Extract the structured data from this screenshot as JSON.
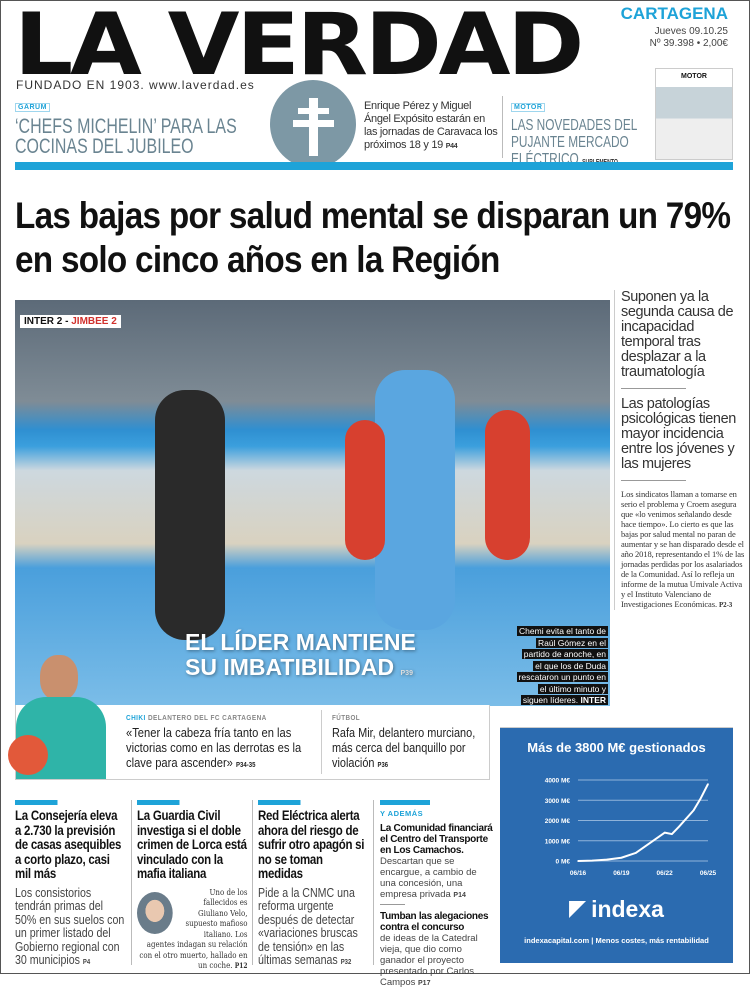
{
  "masthead": {
    "title": "LA VERDAD",
    "founded": "FUNDADO EN 1903. www.laverdad.es",
    "edition": "CARTAGENA",
    "date": "Jueves 09.10.25",
    "issue": "Nº 39.398 • 2,00€"
  },
  "teasers": {
    "garum": {
      "tag": "GARUM",
      "title": "‘CHEFS MICHELIN’ PARA LAS COCINAS DEL JUBILEO"
    },
    "caravaca": {
      "text": "Enrique Pérez y Miguel Ángel Expósito estarán en las jornadas de Caravaca los próximos 18 y 19",
      "page": "P44"
    },
    "motor": {
      "tag": "MOTOR",
      "title": "LAS NOVEDADES DEL PUJANTE MERCADO ELÉCTRICO",
      "suffix": "SUPLEMENTO",
      "thumb_title": "MOTOR"
    }
  },
  "lead": {
    "headline": "Las bajas por salud mental se disparan un 79% en solo cinco años en la Región",
    "decks": [
      "Suponen ya la segunda causa de incapacidad temporal tras desplazar a la traumatología",
      "Las patologías psicológicas tienen mayor incidencia entre los jóvenes y las mujeres"
    ],
    "body": "Los sindicatos llaman a tomarse en serio el problema y Croem asegura que «lo venimos señalando desde hace tiempo». Lo cierto es que las bajas por salud mental no paran de aumentar y se han disparado desde el año 2018, representando el 1% de las jornadas perdidas por los asalariados de la Comunidad. Así lo refleja un informe de la mutua Umivale Activa y el Instituto Valenciano de Investigaciones Económicas.",
    "page": "P2-3"
  },
  "photo": {
    "score_a": "INTER 2 -",
    "score_b": "JIMBEE 2",
    "title1": "EL LÍDER MANTIENE",
    "title2": "SU IMBATIBILIDAD",
    "page": "P39",
    "caption": "Chemi evita el tanto de Raúl Gómez en el partido de anoche, en el que los de Duda rescataron un punto en el último minuto y siguen líderes.",
    "credit": "INTER FS"
  },
  "chiki": {
    "name": "CHIKI",
    "role": "DELANTERO DEL FC CARTAGENA",
    "quote": "«Tener la cabeza fría tanto en las victorias como en las derrotas es la clave para ascender»",
    "page": "P34-35"
  },
  "futbol": {
    "tag": "FÚTBOL",
    "text": "Rafa Mir, delantero murciano, más cerca del banquillo por violación",
    "page": "P36"
  },
  "bottom": [
    {
      "title": "La Consejería eleva a 2.730 la previsión de casas asequibles a corto plazo, casi mil más",
      "text": "Los consistorios tendrán primas del 50% en sus suelos con un primer listado del Gobierno regional con 30 municipios",
      "page": "P4"
    },
    {
      "title": "La Guardia Civil investiga si el doble crimen de Lorca está vinculado con la mafia italiana",
      "text": "Uno de los fallecidos es Giuliano Velo, supuesto mafioso italiano. Los agentes indagan su relación con el otro muerto, hallado en un coche.",
      "page": "P12"
    },
    {
      "title": "Red Eléctrica alerta ahora del riesgo de sufrir otro apagón si no se toman medidas",
      "text": "Pide a la CNMC una reforma urgente después de detectar «variaciones bruscas de tensión» en las últimas semanas",
      "page": "P32"
    }
  ],
  "ademas": {
    "tag": "Y ADEMÁS",
    "items": [
      {
        "title": "La Comunidad financiará el Centro del Transporte en Los Camachos.",
        "text": "Descartan que se encargue, a cambio de una concesión, una empresa privada",
        "page": "P14"
      },
      {
        "title": "Tumban las alegaciones contra el concurso",
        "text": "de ideas de la Catedral vieja, que dio como ganador el proyecto presentado por Carlos Campos",
        "page": "P17"
      }
    ]
  },
  "ad": {
    "title": "Más de 3800 M€ gestionados",
    "brand": "indexa",
    "footer": "indexacapital.com | Menos costes, más rentabilidad",
    "background": "#2b6bb0"
  },
  "chart_data": {
    "type": "line",
    "title": "Más de 3800 M€ gestionados",
    "x": [
      "06/16",
      "06/17",
      "06/18",
      "06/19",
      "06/20",
      "06/21",
      "06/22",
      "06/22.5",
      "06/23",
      "06/24",
      "06/24.5",
      "06/25"
    ],
    "x_index": [
      0,
      1,
      2,
      3,
      4,
      5,
      6,
      6.5,
      7,
      8,
      8.5,
      9
    ],
    "values": [
      0,
      20,
      70,
      160,
      400,
      900,
      1400,
      1330,
      1700,
      2500,
      3100,
      3800
    ],
    "xticks": [
      "06/16",
      "06/19",
      "06/22",
      "06/25"
    ],
    "yticks": [
      "0 M€",
      "1000 M€",
      "2000 M€",
      "3000 M€",
      "4000 M€"
    ],
    "ylim": [
      0,
      4000
    ],
    "grid": true,
    "xlabel": "",
    "ylabel": ""
  },
  "colors": {
    "accent": "#1ea3d8",
    "grey_headline": "#6a8491",
    "red": "#d0312d"
  }
}
